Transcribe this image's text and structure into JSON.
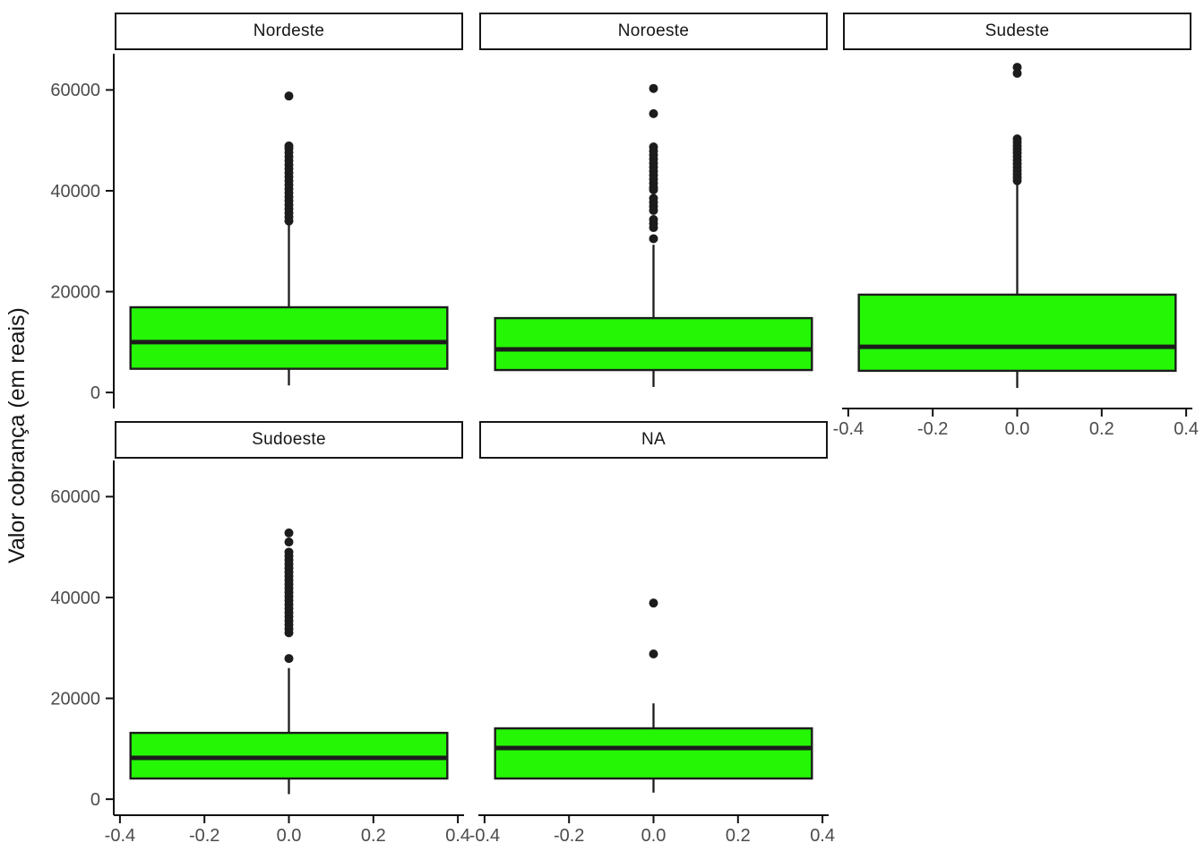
{
  "chart_data": {
    "type": "boxplot",
    "title": "",
    "xlabel": "",
    "ylabel": "Valor cobrança (em reais)",
    "grid": false,
    "legend": false,
    "facet_layout": {
      "ncol": 3,
      "nrow": 2
    },
    "y_axis": {
      "tick_values": [
        0,
        20000,
        40000,
        60000
      ],
      "tick_labels": [
        "0",
        "20000",
        "40000",
        "60000"
      ],
      "domain": [
        -3000,
        67000
      ]
    },
    "x_axis": {
      "tick_values": [
        -0.4,
        -0.2,
        0.0,
        0.2,
        0.4
      ],
      "tick_labels": [
        "-0.4",
        "-0.2",
        "0.0",
        "0.2",
        "0.4"
      ],
      "domain": [
        -0.4125,
        0.4125
      ]
    },
    "box_width": 0.75,
    "box_center_x": 0,
    "facets": [
      {
        "name": "Nordeste",
        "row": 0,
        "col": 0,
        "axis_y": true,
        "axis_x": false,
        "stats": {
          "whisker_low": 1400,
          "q1": 4700,
          "median": 10000,
          "q3": 16900,
          "whisker_high": 33600
        },
        "outliers": [
          58800,
          48900,
          48400,
          47600,
          46800,
          46000,
          45200,
          44400,
          43600,
          42800,
          42000,
          41200,
          40400,
          39600,
          38800,
          38000,
          37200,
          36400,
          35600,
          34800,
          34000
        ]
      },
      {
        "name": "Noroeste",
        "row": 0,
        "col": 1,
        "axis_y": false,
        "axis_x": false,
        "stats": {
          "whisker_low": 1100,
          "q1": 4450,
          "median": 8550,
          "q3": 14750,
          "whisker_high": 29300
        },
        "outliers": [
          60300,
          55300,
          48700,
          47900,
          47100,
          46300,
          45500,
          44700,
          43900,
          43100,
          42300,
          41500,
          40700,
          40200,
          38500,
          37700,
          36900,
          36100,
          34300,
          33500,
          32700,
          30500
        ]
      },
      {
        "name": "Sudeste",
        "row": 0,
        "col": 2,
        "axis_y": false,
        "axis_x": true,
        "stats": {
          "whisker_low": 900,
          "q1": 4300,
          "median": 9050,
          "q3": 19400,
          "whisker_high": 41600
        },
        "outliers": [
          64500,
          63300,
          50300,
          49600,
          48900,
          48200,
          47500,
          46800,
          46100,
          45400,
          44700,
          44000,
          43300,
          42600,
          42000
        ]
      },
      {
        "name": "Sudoeste",
        "row": 1,
        "col": 0,
        "axis_y": true,
        "axis_x": true,
        "stats": {
          "whisker_low": 1000,
          "q1": 4100,
          "median": 8200,
          "q3": 13150,
          "whisker_high": 26000
        },
        "outliers": [
          52800,
          51000,
          49000,
          48200,
          47400,
          46600,
          45800,
          45000,
          44200,
          43400,
          42600,
          41800,
          41000,
          40200,
          39400,
          38600,
          37800,
          37000,
          36200,
          35400,
          34600,
          33800,
          33000,
          27900
        ]
      },
      {
        "name": "NA",
        "row": 1,
        "col": 1,
        "axis_y": false,
        "axis_x": true,
        "stats": {
          "whisker_low": 1300,
          "q1": 4100,
          "median": 10150,
          "q3": 14050,
          "whisker_high": 19000
        },
        "outliers": [
          38900,
          28800
        ]
      }
    ]
  },
  "style": {
    "box_fill": "#24f606",
    "stroke": "#1c1c1c",
    "outlier_color": "#1c1c1c",
    "axis_line_color": "#111111",
    "tick_text_color": "#4b4b4b",
    "strip_text_color": "#151515",
    "strip_border_color": "#151515",
    "strip_bg": "#ffffff",
    "background": "#ffffff"
  }
}
